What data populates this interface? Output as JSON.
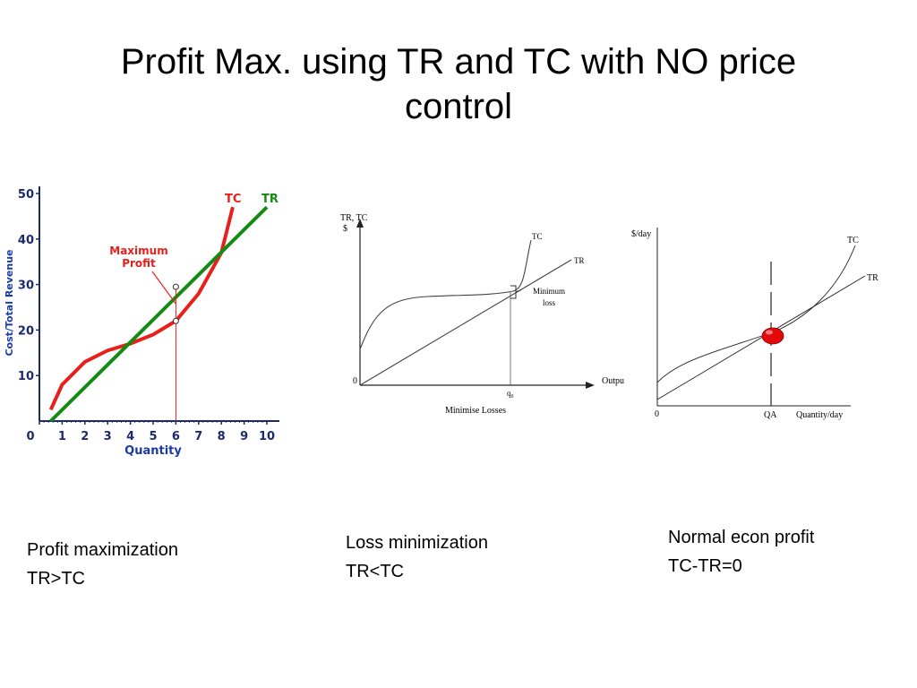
{
  "title": {
    "line1": "Profit Max. using TR and TC with NO price",
    "line2": "control"
  },
  "captions": [
    {
      "line1": "Profit maximization",
      "line2": "TR>TC"
    },
    {
      "line1": "Loss minimization",
      "line2": "TR<TC"
    },
    {
      "line1": "Normal econ profit",
      "line2": "TC-TR=0"
    }
  ],
  "chart_data": [
    {
      "type": "line",
      "ylabel": "Cost/Total Revenue",
      "xlabel": "Quantity",
      "xlim": [
        0,
        10
      ],
      "ylim": [
        0,
        50
      ],
      "xticks": [
        0,
        1,
        2,
        3,
        4,
        5,
        6,
        7,
        8,
        9,
        10
      ],
      "yticks": [
        10,
        20,
        30,
        40,
        50
      ],
      "series": [
        {
          "name": "TC",
          "color": "#e8201c",
          "x": [
            0.5,
            1,
            2,
            3,
            4,
            5,
            6,
            7,
            8,
            8.5
          ],
          "y": [
            2.5,
            8,
            13,
            15.5,
            17,
            19,
            22,
            28,
            37,
            47
          ]
        },
        {
          "name": "TR",
          "color": "#138a13",
          "x": [
            0.5,
            10
          ],
          "y": [
            0,
            47
          ]
        }
      ],
      "points": [
        {
          "x": 6,
          "y": 29.5
        },
        {
          "x": 6,
          "y": 22
        }
      ],
      "annotation": {
        "line1": "Maximum",
        "line2": "Profit",
        "color": "#e8201c"
      }
    },
    {
      "type": "line",
      "title": "Minimise Losses",
      "ylabel_line1": "TR, TC",
      "ylabel_line2": "$",
      "xlabel": "Outpu",
      "origin_label": "0",
      "q_label": "q₀",
      "series": [
        {
          "name": "TC"
        },
        {
          "name": "TR"
        }
      ],
      "annotation": {
        "line1": "Minimum",
        "line2": "loss"
      }
    },
    {
      "type": "line",
      "ylabel": "$/day",
      "xlabel": "Quantity/day",
      "origin_label": "0",
      "q_label": "QA",
      "series": [
        {
          "name": "TC"
        },
        {
          "name": "TR"
        }
      ],
      "marker_color": "#e4080a"
    }
  ]
}
